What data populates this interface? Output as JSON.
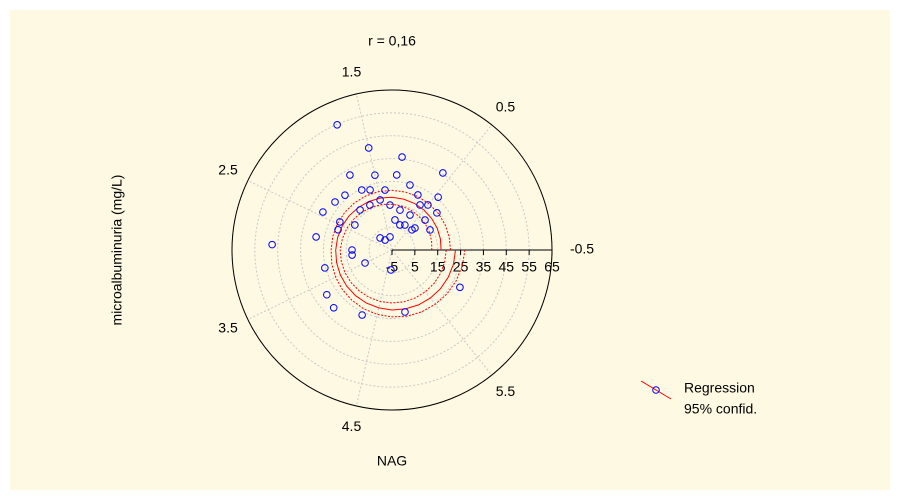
{
  "chart_data": {
    "type": "polar-scatter",
    "title": "r = 0,16",
    "x_label": "NAG",
    "y_label": "microalbuminuria (mg/L)",
    "xlim": [
      -0.5,
      6.5
    ],
    "xticks": [
      -0.5,
      0.5,
      1.5,
      2.5,
      3.5,
      4.5,
      5.5
    ],
    "ylim": [
      -5,
      65
    ],
    "yticks": [
      -5,
      5,
      15,
      25,
      35,
      45,
      55,
      65
    ],
    "grid": true,
    "points": {
      "color": "#0000ff",
      "x": [
        1.71,
        2.95,
        5.94,
        0.6,
        1.13,
        1.5,
        4.98,
        4.27,
        3.87,
        3.67,
        2.81,
        2.44,
        1.82,
        1.5,
        1.18,
        0.27,
        0.45,
        3.14,
        3.5,
        4.69,
        2.12,
        1.93,
        1.42,
        2.6,
        2.45,
        2.34,
        2.0,
        1.76,
        1.51,
        1.3,
        1.03,
        0.72,
        0.63,
        0.32,
        0.38,
        0.91,
        1.64,
        2.04,
        1.38,
        0.95,
        0.76,
        0.5,
        3.0,
        3.29,
        0.72,
        0.35,
        1.14,
        2.22,
        1.77,
        0.04
      ],
      "values": [
        54.8,
        47.5,
        28.9,
        35.4,
        35.9,
        40.8,
        22.7,
        26.3,
        30.9,
        29.6,
        28.7,
        29.5,
        32.6,
        28.6,
        27.9,
        20.5,
        25.7,
        12.6,
        8.1,
        3.75,
        2.4,
        0.3,
        0.8,
        20.2,
        20.9,
        14.6,
        17.4,
        16.9,
        17.5,
        14.7,
        12.8,
        12.2,
        18.2,
        14.5,
        7.4,
        6.5,
        23.0,
        26.6,
        21.4,
        24.5,
        21.6,
        20.2,
        12.5,
        25.4,
        7.3,
        8.9,
        8.2,
        27.6,
        24.4,
        13.8
      ]
    },
    "regression": {
      "name": "Regression",
      "color": "#ff0000",
      "x": [
        -0.5,
        -0.25,
        0,
        0.25,
        0.5,
        0.75,
        1,
        1.25,
        1.5,
        1.75,
        2,
        2.25,
        2.5,
        2.75,
        3,
        3.25,
        3.5,
        3.75,
        4,
        4.25,
        4.5,
        4.75,
        5,
        5.25,
        5.5,
        5.75,
        6,
        6.25,
        6.5
      ],
      "values": [
        16.5,
        16.73,
        16.95,
        17.18,
        17.4,
        17.63,
        17.85,
        18.08,
        18.3,
        18.53,
        18.75,
        18.98,
        19.2,
        19.43,
        19.65,
        19.88,
        20.1,
        20.33,
        20.55,
        20.78,
        21.0,
        21.23,
        21.45,
        21.68,
        21.9,
        22.13,
        22.35,
        22.58,
        22.8
      ]
    },
    "confidence": {
      "name": "95% confid.",
      "color": "#ff0000",
      "upper": [
        20.6,
        20.68,
        20.75,
        20.83,
        20.9,
        20.98,
        21.05,
        21.13,
        21.2,
        21.28,
        21.35,
        21.43,
        21.5,
        21.58,
        21.65,
        22.03,
        22.4,
        22.78,
        23.15,
        23.53,
        23.9,
        24.28,
        24.65,
        25.03,
        25.4,
        25.78,
        26.15,
        26.53,
        26.9
      ],
      "lower": [
        12.4,
        12.78,
        13.15,
        13.53,
        13.9,
        14.28,
        14.65,
        15.03,
        15.4,
        15.78,
        16.15,
        16.53,
        16.9,
        17.28,
        17.65,
        17.73,
        17.8,
        17.88,
        17.95,
        18.03,
        18.1,
        18.18,
        18.25,
        18.33,
        18.4,
        18.48,
        18.55,
        18.63,
        18.7
      ]
    }
  }
}
